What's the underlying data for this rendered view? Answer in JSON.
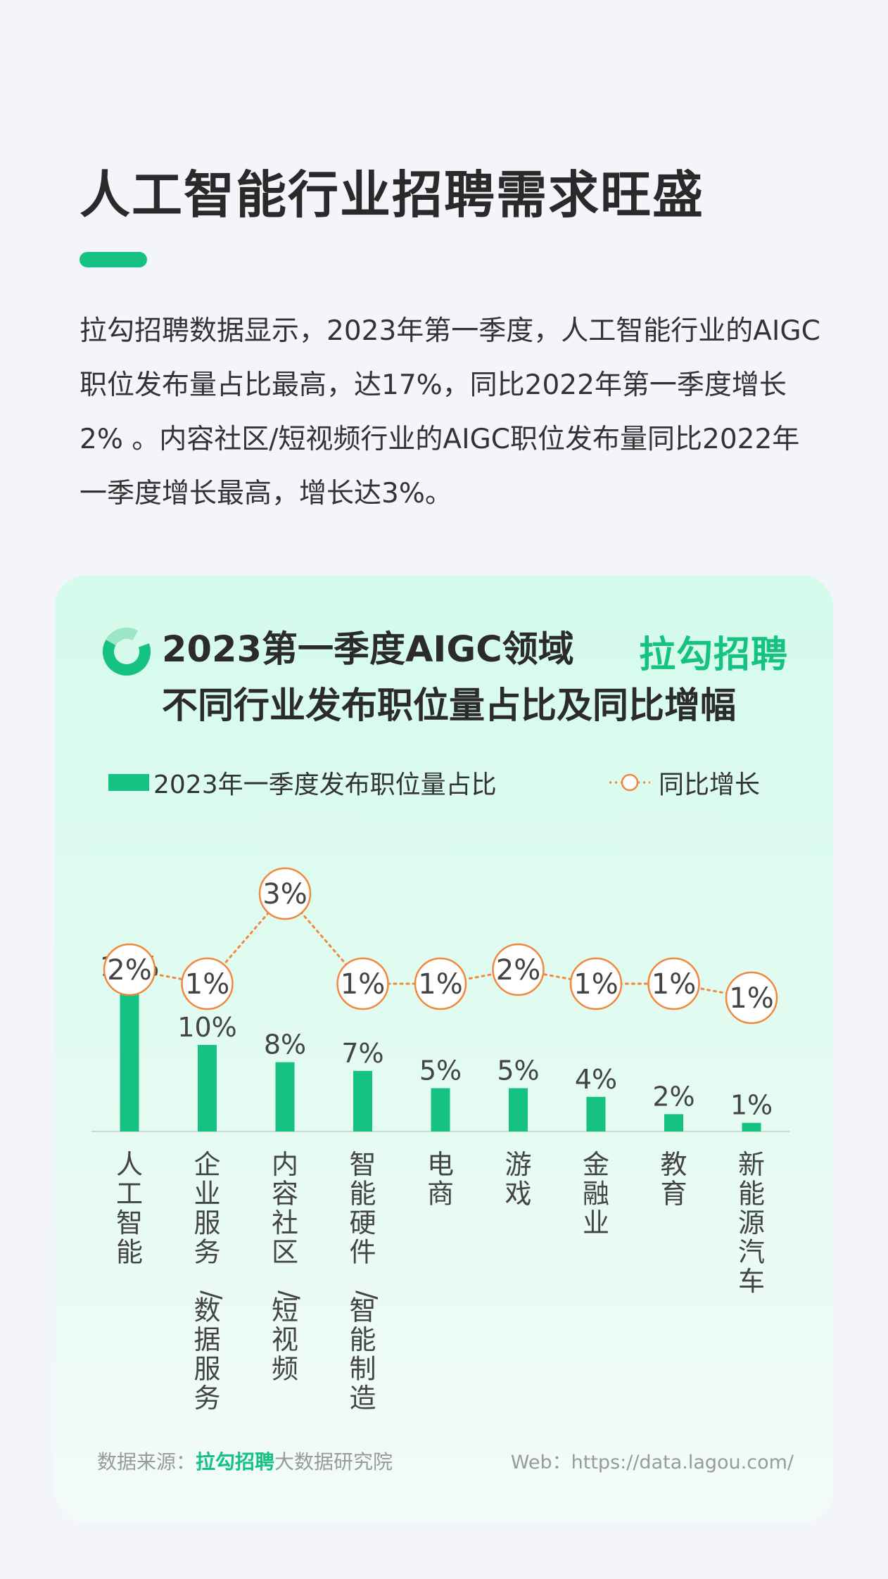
{
  "page": {
    "title": "人工智能行业招聘需求旺盛",
    "intro": "拉勾招聘数据显示，2023年第一季度，人工智能行业的AIGC职位发布量占比最高，达17%，同比2022年第一季度增长2% 。内容社区/短视频行业的AIGC职位发布量同比2022年一季度增长最高，增长达3%。"
  },
  "card": {
    "title_line1": "2023第一季度AIGC领域",
    "title_line2": "不同行业发布职位量占比及同比增幅",
    "brand": "拉勾招聘",
    "source_prefix": "数据来源：",
    "source_brand": "拉勾招聘",
    "source_suffix": "大数据研究院",
    "web": "Web：https://data.lagou.com/"
  },
  "colors": {
    "accent": "#15c183",
    "line": "#f0883e",
    "text": "#2b2b2b"
  },
  "icons": {
    "logo": "ring-logo-icon"
  },
  "chart_data": {
    "type": "bar",
    "title": "2023第一季度AIGC领域 不同行业发布职位量占比及同比增幅",
    "categories": [
      "人工智能",
      "企业服务/数据服务",
      "内容社区/短视频",
      "智能硬件/智能制造",
      "电商",
      "游戏",
      "金融业",
      "教育",
      "新能源汽车"
    ],
    "series": [
      {
        "name": "2023年一季度发布职位量占比",
        "type": "bar",
        "values": [
          17,
          10,
          8,
          7,
          5,
          5,
          4,
          2,
          1
        ],
        "labels": [
          "17%",
          "10%",
          "8%",
          "7%",
          "5%",
          "5%",
          "4%",
          "2%",
          "1%"
        ]
      },
      {
        "name": "同比增长",
        "type": "line",
        "values": [
          2,
          1,
          3,
          1,
          1,
          2,
          1,
          1,
          1
        ],
        "labels": [
          "2%",
          "1%",
          "3%",
          "1%",
          "1%",
          "2%",
          "1%",
          "1%",
          "1%"
        ]
      }
    ],
    "legend": "top-left",
    "grid": false
  }
}
